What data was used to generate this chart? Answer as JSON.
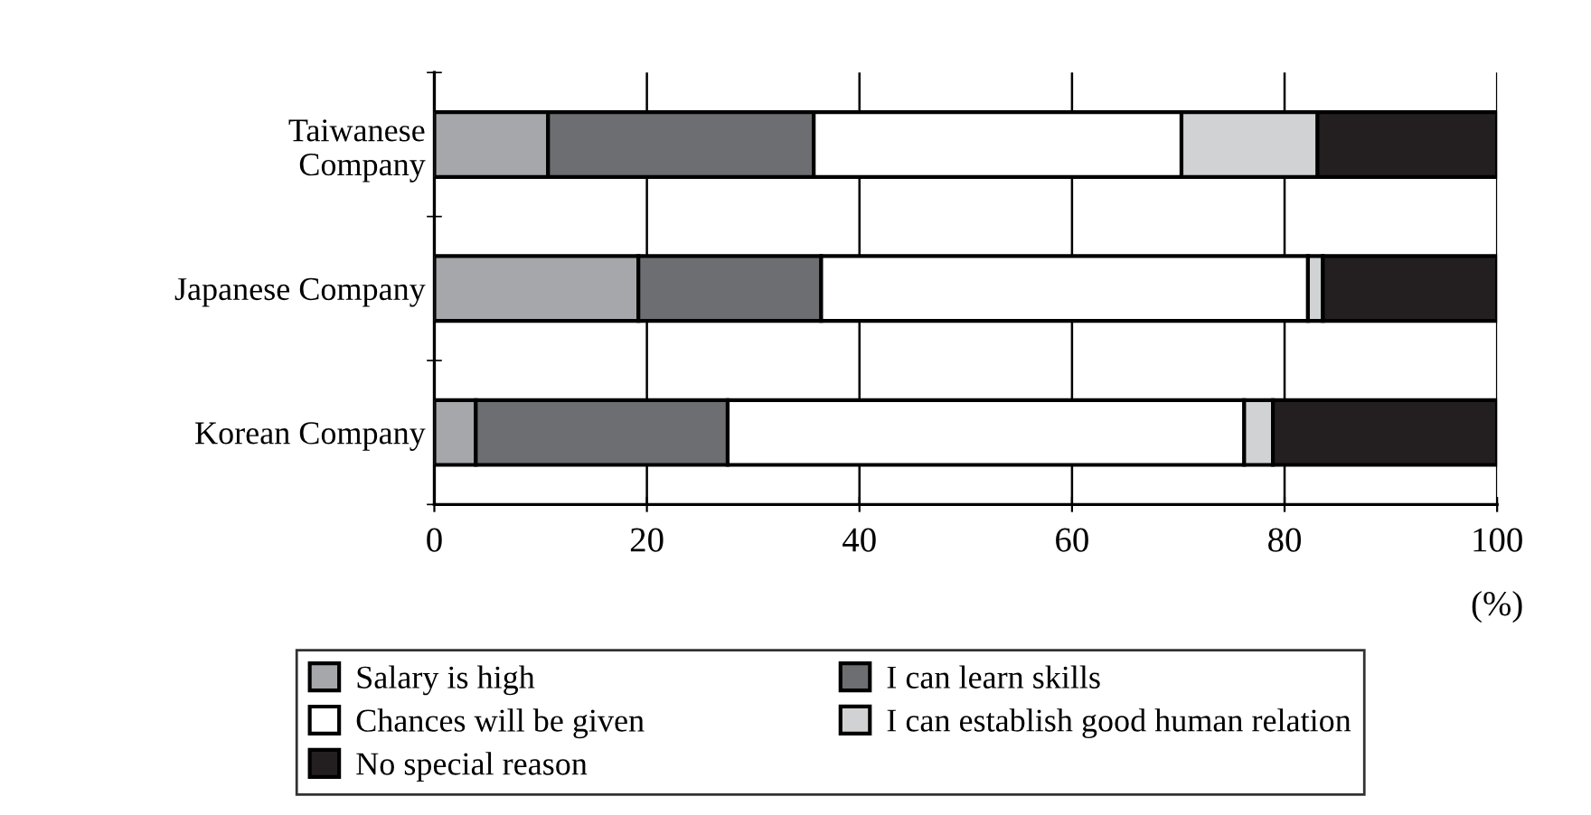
{
  "chart_data": {
    "type": "bar",
    "orientation": "horizontal",
    "stacked": true,
    "categories": [
      "Taiwanese\nCompany",
      "Japanese Company",
      "Korean Company"
    ],
    "series": [
      {
        "name": "Salary is high",
        "color": "#a6a7aa",
        "values": [
          10.7,
          19.2,
          3.9
        ]
      },
      {
        "name": "I can learn skills",
        "color": "#6d6e71",
        "values": [
          25.0,
          17.2,
          23.7
        ]
      },
      {
        "name": "Chances will be given",
        "color": "#ffffff",
        "values": [
          34.6,
          45.8,
          48.6
        ]
      },
      {
        "name": "I can establish good human relation",
        "color": "#d1d2d4",
        "values": [
          12.8,
          1.4,
          2.7
        ]
      },
      {
        "name": "No special reason",
        "color": "#231f20",
        "values": [
          16.9,
          16.4,
          21.1
        ]
      }
    ],
    "xlabel": "(%)",
    "xlim": [
      0,
      100
    ],
    "xticks": [
      0,
      20,
      40,
      60,
      80,
      100
    ],
    "grid": "x",
    "legend": "bottom"
  }
}
